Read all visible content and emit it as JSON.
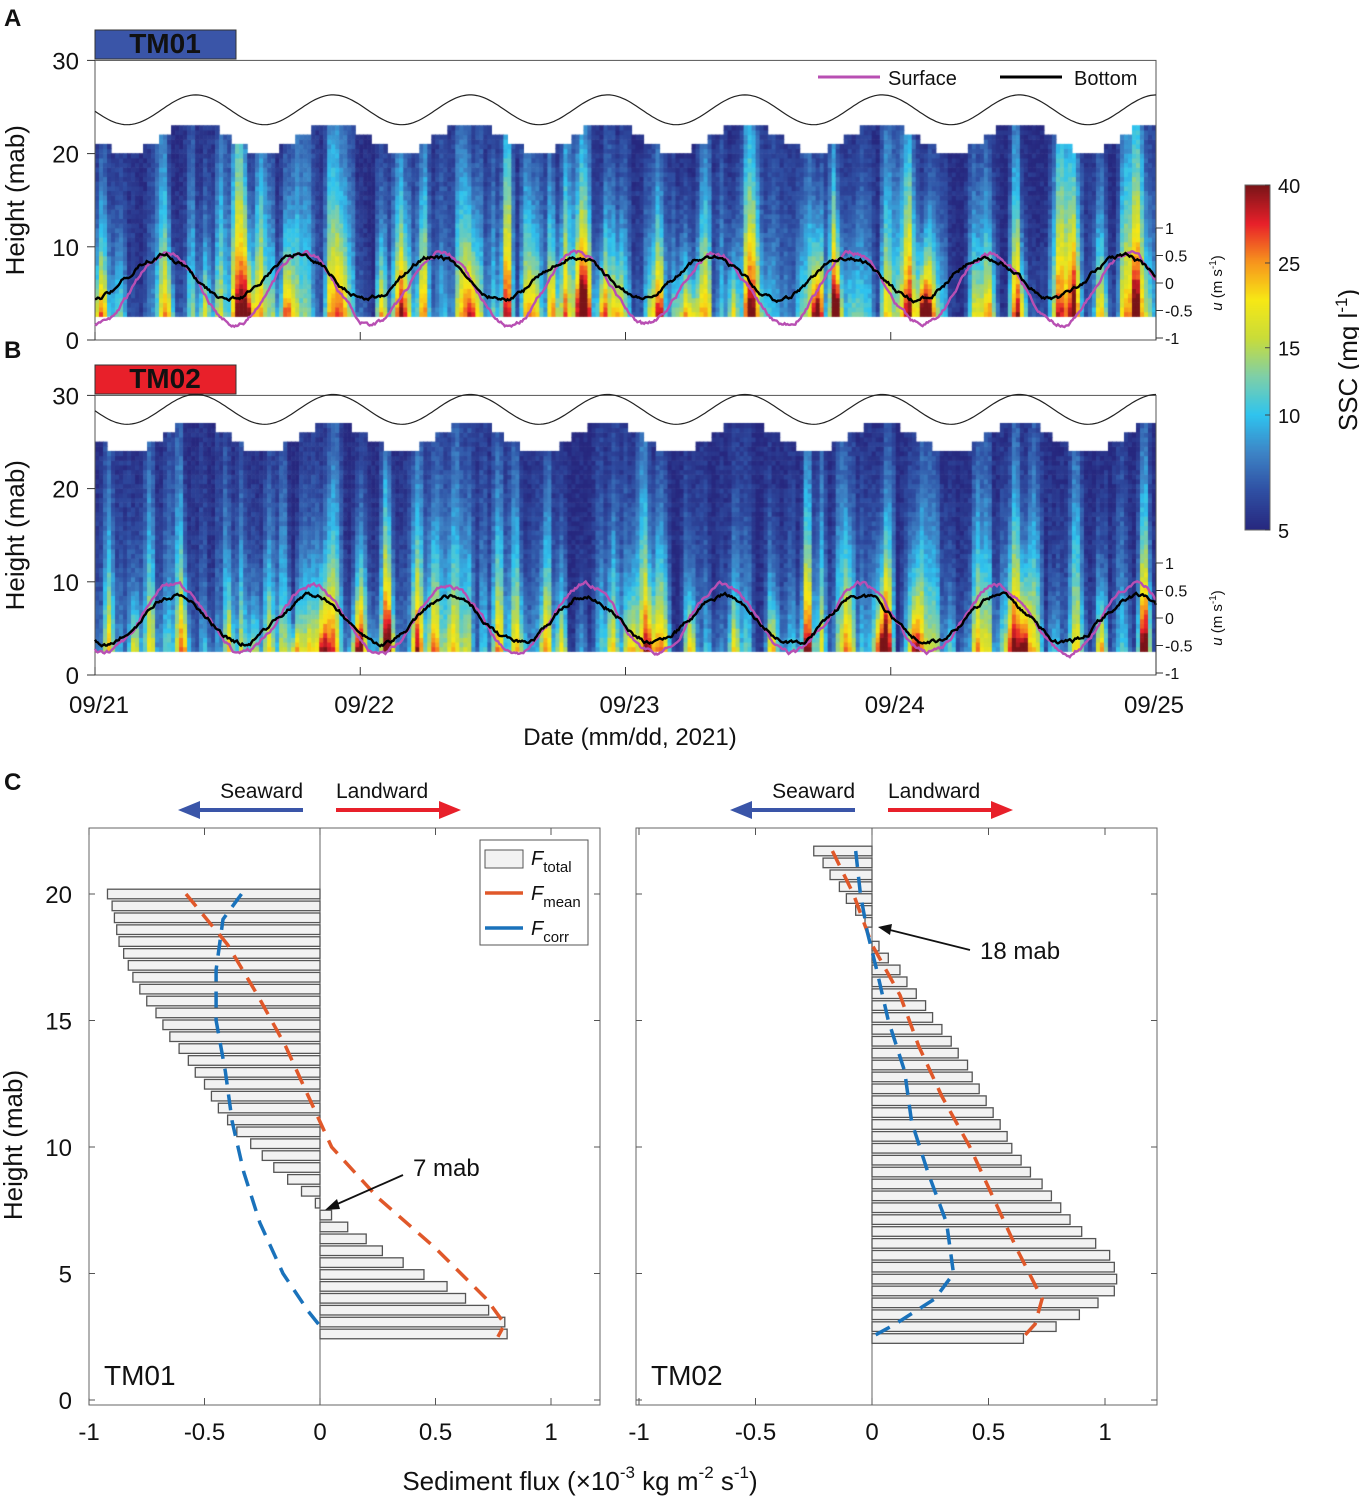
{
  "panel_labels": {
    "a": "A",
    "b": "B",
    "c": "C"
  },
  "chart_data": [
    {
      "type": "heatmap",
      "panel": "A",
      "station": "TM01",
      "station_color": "#3a55a8",
      "ylabel": "Height (mab)",
      "ylim": [
        0,
        30
      ],
      "yticks": [
        "0",
        "10",
        "20",
        "30"
      ],
      "xlim_days": [
        0,
        4
      ],
      "xticks": [
        "09/21",
        "09/22",
        "09/23",
        "09/24",
        "09/25"
      ],
      "xlabel": "Date (mm/dd, 2021)",
      "u_axis": {
        "label_u": "u",
        "label_rest": " (m s",
        "label_sup": "-1",
        "label_close": ")",
        "ticks": [
          "1",
          "0.5",
          "0",
          "-0.5",
          "-1"
        ],
        "lim": [
          -1,
          1
        ]
      },
      "legend": {
        "surface": "Surface",
        "bottom": "Bottom",
        "surface_color": "#b84fb3",
        "bottom_color": "#000000"
      },
      "water_level": {
        "mean_mab": 24.7,
        "amplitude_m": 1.6,
        "period_h": 12.42,
        "first_high_day": 0.38
      },
      "ssc_bottom_mab": 2.5,
      "u_surface": {
        "amplitude": 0.65,
        "offset": -0.1,
        "period_h": 12.42,
        "first_peak_day": 0.27
      },
      "u_bottom": {
        "amplitude": 0.4,
        "offset": 0.1,
        "period_h": 12.42,
        "first_peak_day": 0.25
      },
      "seed": 7
    },
    {
      "type": "heatmap",
      "panel": "B",
      "station": "TM02",
      "station_color": "#e8202a",
      "ylabel": "Height (mab)",
      "ylim": [
        0,
        30
      ],
      "yticks": [
        "0",
        "10",
        "20",
        "30"
      ],
      "xlim_days": [
        0,
        4
      ],
      "xticks": [
        "09/21",
        "09/22",
        "09/23",
        "09/24",
        "09/25"
      ],
      "xlabel": "Date (mm/dd, 2021)",
      "u_axis": {
        "label_u": "u",
        "label_rest": " (m s",
        "label_sup": "-1",
        "label_close": ")",
        "ticks": [
          "1",
          "0.5",
          "0",
          "-0.5",
          "-1"
        ],
        "lim": [
          -1,
          1
        ]
      },
      "water_level": {
        "mean_mab": 28.5,
        "amplitude_m": 1.6,
        "period_h": 12.42,
        "first_high_day": 0.38
      },
      "ssc_bottom_mab": 2.5,
      "u_surface": {
        "amplitude": 0.62,
        "offset": -0.02,
        "period_h": 12.42,
        "first_peak_day": 0.3
      },
      "u_bottom": {
        "amplitude": 0.43,
        "offset": -0.03,
        "period_h": 12.42,
        "first_peak_day": 0.3
      },
      "seed": 21
    },
    {
      "type": "colorbar",
      "label": "SSC (mg l",
      "label_sup": "-1",
      "label_close": ")",
      "scale": "log",
      "range": [
        5,
        40
      ],
      "ticks": [
        40,
        25,
        15,
        10,
        5
      ],
      "tick_labels": [
        "40",
        "25",
        "15",
        "10",
        "5"
      ],
      "colormap": [
        "#27287f",
        "#2f4fa3",
        "#3d84c6",
        "#2fc4ef",
        "#7fcfa8",
        "#c9dc3a",
        "#f7e815",
        "#f7941d",
        "#e8202a",
        "#7a1418"
      ]
    },
    {
      "type": "bar",
      "panel": "C",
      "station": "TM01",
      "orientation": "horizontal",
      "xlabel_parts": [
        "Sediment flux (×10",
        "-3",
        " kg m",
        "-2",
        " s",
        "-1",
        ")"
      ],
      "ylabel": "Height (mab)",
      "xlim": [
        -1,
        1
      ],
      "ylim": [
        0,
        22.5
      ],
      "xtick_labels": [
        "-1",
        "-0.5",
        "0",
        "0.5",
        "1"
      ],
      "ytick_labels": [
        "0",
        "5",
        "10",
        "15",
        "20"
      ],
      "direction_labels": {
        "seaward": "Seaward",
        "landward": "Landward",
        "seaward_color": "#3a55a8",
        "landward_color": "#e8202a"
      },
      "z_top": 20.0,
      "dz": 0.47,
      "F_total": [
        -0.92,
        -0.9,
        -0.89,
        -0.88,
        -0.87,
        -0.85,
        -0.83,
        -0.81,
        -0.78,
        -0.75,
        -0.71,
        -0.68,
        -0.65,
        -0.61,
        -0.57,
        -0.54,
        -0.5,
        -0.47,
        -0.44,
        -0.4,
        -0.36,
        -0.3,
        -0.25,
        -0.2,
        -0.14,
        -0.08,
        -0.02,
        0.05,
        0.12,
        0.2,
        0.27,
        0.36,
        0.45,
        0.55,
        0.63,
        0.73,
        0.8,
        0.81
      ],
      "F_mean": [
        [
          20,
          -0.58
        ],
        [
          18,
          -0.4
        ],
        [
          16,
          -0.27
        ],
        [
          14,
          -0.15
        ],
        [
          12,
          -0.05
        ],
        [
          10,
          0.05
        ],
        [
          8,
          0.25
        ],
        [
          6,
          0.5
        ],
        [
          4,
          0.72
        ],
        [
          3,
          0.8
        ],
        [
          2.5,
          0.77
        ]
      ],
      "F_corr": [
        [
          20,
          -0.34
        ],
        [
          19,
          -0.42
        ],
        [
          17,
          -0.45
        ],
        [
          15,
          -0.45
        ],
        [
          13,
          -0.41
        ],
        [
          11,
          -0.38
        ],
        [
          9,
          -0.33
        ],
        [
          7,
          -0.26
        ],
        [
          5,
          -0.16
        ],
        [
          3.5,
          -0.05
        ],
        [
          2.7,
          0.02
        ]
      ],
      "legend": [
        {
          "main": "F",
          "sub": "total"
        },
        {
          "main": "F",
          "sub": "mean",
          "color": "#e0582a"
        },
        {
          "main": "F",
          "sub": "corr",
          "color": "#1a72bb"
        }
      ],
      "annotation": "7 mab",
      "station_label": "TM01"
    },
    {
      "type": "bar",
      "panel": "C",
      "station": "TM02",
      "orientation": "horizontal",
      "xlim": [
        -1,
        1
      ],
      "ylim": [
        0,
        22.5
      ],
      "xtick_labels": [
        "-1",
        "-0.5",
        "0",
        "0.5",
        "1"
      ],
      "direction_labels": {
        "seaward": "Seaward",
        "landward": "Landward"
      },
      "z_top": 21.7,
      "dz": 0.47,
      "F_total": [
        -0.25,
        -0.21,
        -0.18,
        -0.14,
        -0.11,
        -0.07,
        -0.03,
        0.0,
        0.03,
        0.07,
        0.12,
        0.15,
        0.19,
        0.23,
        0.26,
        0.3,
        0.34,
        0.37,
        0.41,
        0.43,
        0.46,
        0.49,
        0.52,
        0.55,
        0.58,
        0.6,
        0.64,
        0.68,
        0.73,
        0.77,
        0.81,
        0.85,
        0.9,
        0.96,
        1.02,
        1.04,
        1.05,
        1.04,
        0.97,
        0.89,
        0.79,
        0.65
      ],
      "F_mean": [
        [
          21.7,
          -0.17
        ],
        [
          20,
          -0.08
        ],
        [
          18,
          0.0
        ],
        [
          16,
          0.12
        ],
        [
          14,
          0.2
        ],
        [
          12,
          0.3
        ],
        [
          10,
          0.42
        ],
        [
          8,
          0.52
        ],
        [
          6,
          0.62
        ],
        [
          4,
          0.73
        ],
        [
          3,
          0.7
        ],
        [
          2.5,
          0.65
        ]
      ],
      "F_corr": [
        [
          21.7,
          -0.07
        ],
        [
          20,
          -0.05
        ],
        [
          18.5,
          -0.02
        ],
        [
          17,
          0.02
        ],
        [
          15,
          0.07
        ],
        [
          13,
          0.14
        ],
        [
          11,
          0.17
        ],
        [
          9,
          0.24
        ],
        [
          7,
          0.32
        ],
        [
          5,
          0.35
        ],
        [
          4,
          0.27
        ],
        [
          3,
          0.1
        ],
        [
          2.5,
          0.0
        ]
      ],
      "annotation": "18 mab",
      "station_label": "TM02"
    }
  ]
}
